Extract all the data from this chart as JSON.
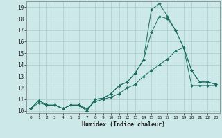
{
  "xlabel": "Humidex (Indice chaleur)",
  "bg_color": "#cce8e8",
  "line_color": "#1a6b60",
  "grid_color": "#aacccc",
  "xlim": [
    -0.5,
    23.5
  ],
  "ylim": [
    9.8,
    19.5
  ],
  "xticks": [
    0,
    1,
    2,
    3,
    4,
    5,
    6,
    7,
    8,
    9,
    10,
    11,
    12,
    13,
    14,
    15,
    16,
    17,
    18,
    19,
    20,
    21,
    22,
    23
  ],
  "yticks": [
    10,
    11,
    12,
    13,
    14,
    15,
    16,
    17,
    18,
    19
  ],
  "series1_x": [
    0,
    1,
    2,
    3,
    4,
    5,
    6,
    7,
    8,
    9,
    10,
    11,
    12,
    13,
    14,
    15,
    16,
    17,
    18,
    19,
    20,
    21,
    22,
    23
  ],
  "series1_y": [
    10.2,
    10.9,
    10.5,
    10.5,
    10.2,
    10.5,
    10.5,
    10.0,
    11.0,
    11.1,
    11.5,
    12.2,
    12.5,
    13.3,
    14.4,
    16.8,
    18.2,
    18.0,
    17.0,
    15.5,
    13.5,
    12.5,
    12.5,
    12.3
  ],
  "series2_x": [
    0,
    1,
    2,
    3,
    4,
    5,
    6,
    7,
    8,
    9,
    10,
    11,
    12,
    13,
    14,
    15,
    16,
    17,
    18,
    19,
    20,
    21,
    22,
    23
  ],
  "series2_y": [
    10.2,
    10.9,
    10.5,
    10.5,
    10.2,
    10.5,
    10.5,
    10.0,
    11.0,
    11.1,
    11.5,
    12.2,
    12.5,
    13.3,
    14.4,
    18.8,
    19.3,
    18.2,
    17.0,
    15.5,
    13.5,
    12.5,
    12.5,
    12.3
  ],
  "series3_x": [
    0,
    1,
    2,
    3,
    4,
    5,
    6,
    7,
    8,
    9,
    10,
    11,
    12,
    13,
    14,
    15,
    16,
    17,
    18,
    19,
    20,
    21,
    22,
    23
  ],
  "series3_y": [
    10.2,
    10.7,
    10.5,
    10.5,
    10.2,
    10.5,
    10.5,
    10.2,
    10.8,
    11.0,
    11.2,
    11.5,
    12.0,
    12.3,
    13.0,
    13.5,
    14.0,
    14.5,
    15.2,
    15.5,
    12.2,
    12.2,
    12.2,
    12.2
  ]
}
